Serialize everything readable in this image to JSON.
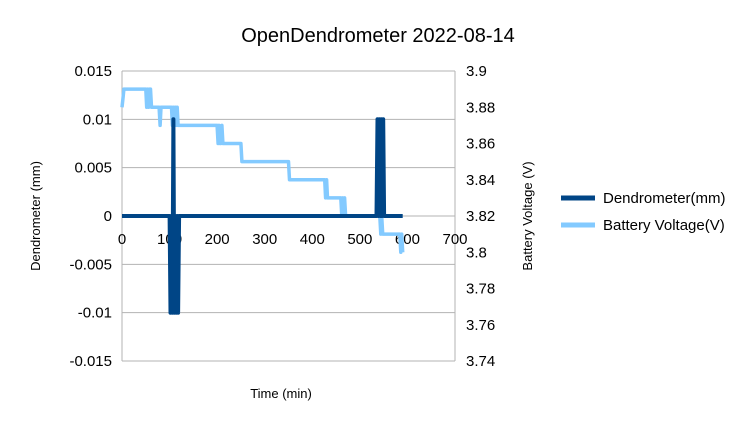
{
  "chart_data": {
    "type": "line",
    "title": "OpenDendrometer 2022-08-14",
    "xlabel": "Time (min)",
    "ylabel": "Dendrometer (mm)",
    "y2label": "Battery Voltage (V)",
    "xlim": [
      0,
      700
    ],
    "ylim": [
      -0.015,
      0.015
    ],
    "y2lim": [
      3.74,
      3.9
    ],
    "x_ticks": [
      "0",
      "100",
      "200",
      "300",
      "400",
      "500",
      "600",
      "700"
    ],
    "x_tick_values": [
      0,
      100,
      200,
      300,
      400,
      500,
      600,
      700
    ],
    "y_ticks": [
      "0.015",
      "0.01",
      "0.005",
      "0",
      "-0.005",
      "-0.01",
      "-0.015"
    ],
    "y_tick_values": [
      0.015,
      0.01,
      0.005,
      0,
      -0.005,
      -0.01,
      -0.015
    ],
    "y2_ticks": [
      "3.9",
      "3.88",
      "3.86",
      "3.84",
      "3.82",
      "3.8",
      "3.78",
      "3.76",
      "3.74"
    ],
    "y2_tick_values": [
      3.9,
      3.88,
      3.86,
      3.84,
      3.82,
      3.8,
      3.78,
      3.76,
      3.74
    ],
    "grid": "horizontal",
    "legend_position": "right",
    "series": [
      {
        "name": "Dendrometer(mm)",
        "axis": "left",
        "color": "#004586",
        "x": [
          0,
          100,
          102,
          104,
          106,
          108,
          110,
          112,
          114,
          116,
          118,
          120,
          535,
          537,
          539,
          541,
          543,
          545,
          547,
          549,
          551,
          553,
          590
        ],
        "y": [
          0,
          0,
          -0.01,
          0,
          -0.01,
          0.01,
          -0.01,
          0,
          -0.01,
          0,
          -0.01,
          0,
          0,
          0.01,
          0,
          0.01,
          0,
          0.01,
          0,
          0.01,
          0,
          0,
          0
        ]
      },
      {
        "name": "Battery Voltage(V)",
        "axis": "right",
        "color": "#83caff",
        "x": [
          0,
          2,
          4,
          6,
          50,
          52,
          54,
          56,
          58,
          60,
          62,
          64,
          66,
          68,
          70,
          72,
          74,
          76,
          78,
          80,
          82,
          84,
          86,
          88,
          90,
          92,
          94,
          96,
          98,
          100,
          102,
          104,
          106,
          108,
          110,
          112,
          114,
          116,
          118,
          120,
          200,
          202,
          204,
          206,
          208,
          210,
          212,
          214,
          216,
          218,
          220,
          222,
          224,
          226,
          228,
          230,
          250,
          252,
          350,
          352,
          420,
          422,
          424,
          426,
          428,
          430,
          432,
          434,
          436,
          438,
          440,
          460,
          462,
          464,
          466,
          468,
          470,
          472,
          474,
          476,
          478,
          480,
          482,
          540,
          542,
          544,
          546,
          548,
          550,
          552,
          554,
          556,
          558,
          560,
          562,
          564,
          566,
          568,
          570,
          572,
          574,
          576,
          578,
          580,
          582,
          584,
          586,
          588,
          590
        ],
        "y": [
          3.88,
          3.885,
          3.89,
          3.89,
          3.89,
          3.88,
          3.89,
          3.88,
          3.89,
          3.89,
          3.88,
          3.88,
          3.88,
          3.88,
          3.88,
          3.88,
          3.88,
          3.88,
          3.88,
          3.87,
          3.88,
          3.88,
          3.88,
          3.88,
          3.88,
          3.88,
          3.88,
          3.88,
          3.88,
          3.88,
          3.88,
          3.88,
          3.87,
          3.88,
          3.87,
          3.88,
          3.87,
          3.88,
          3.87,
          3.87,
          3.87,
          3.86,
          3.87,
          3.86,
          3.86,
          3.87,
          3.86,
          3.86,
          3.86,
          3.86,
          3.86,
          3.86,
          3.86,
          3.86,
          3.86,
          3.86,
          3.86,
          3.85,
          3.85,
          3.84,
          3.84,
          3.84,
          3.84,
          3.84,
          3.83,
          3.84,
          3.83,
          3.83,
          3.83,
          3.83,
          3.83,
          3.83,
          3.82,
          3.83,
          3.82,
          3.83,
          3.82,
          3.82,
          3.82,
          3.82,
          3.82,
          3.82,
          3.82,
          3.82,
          3.82,
          3.81,
          3.82,
          3.81,
          3.81,
          3.81,
          3.81,
          3.81,
          3.81,
          3.81,
          3.81,
          3.81,
          3.81,
          3.81,
          3.81,
          3.81,
          3.81,
          3.81,
          3.81,
          3.81,
          3.81,
          3.81,
          3.8,
          3.81,
          3.8
        ]
      }
    ]
  }
}
